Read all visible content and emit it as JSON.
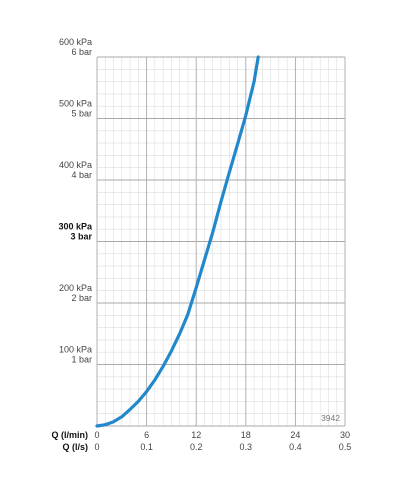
{
  "chart_data": {
    "type": "line",
    "title": "",
    "annotation": "3942",
    "grid": true,
    "colors": {
      "curve": "#2288cc",
      "grid_major": "#aaaaaa",
      "grid_minor": "#dddddd"
    },
    "x_axis": {
      "label": "Q (l/min)",
      "range": [
        0,
        30
      ],
      "ticks": [
        "0",
        "6",
        "12",
        "18",
        "24",
        "30"
      ]
    },
    "x_axis_secondary": {
      "label": "Q (l/s)",
      "range": [
        0,
        0.5
      ],
      "ticks": [
        "0",
        "0.1",
        "0.2",
        "0.3",
        "0.4",
        "0.5"
      ]
    },
    "y_axis": {
      "range": [
        0,
        600
      ],
      "unit": "kPa",
      "ticks": [
        {
          "kpa": "100 kPa",
          "bar": "1 bar",
          "bold": false
        },
        {
          "kpa": "200 kPa",
          "bar": "2 bar",
          "bold": false
        },
        {
          "kpa": "300 kPa",
          "bar": "3 bar",
          "bold": true
        },
        {
          "kpa": "400 kPa",
          "bar": "4 bar",
          "bold": false
        },
        {
          "kpa": "500 kPa",
          "bar": "5 bar",
          "bold": false
        },
        {
          "kpa": "600 kPa",
          "bar": "6 bar",
          "bold": false
        }
      ]
    },
    "series": [
      {
        "x": [
          0,
          1,
          2,
          3,
          4,
          5,
          6,
          7,
          8,
          9,
          10,
          11,
          12,
          13,
          14,
          15,
          16,
          17,
          18,
          19,
          19.5
        ],
        "y": [
          0,
          2,
          7,
          15,
          27,
          40,
          56,
          75,
          97,
          122,
          150,
          182,
          225,
          270,
          315,
          365,
          412,
          458,
          505,
          560,
          600
        ]
      }
    ]
  }
}
